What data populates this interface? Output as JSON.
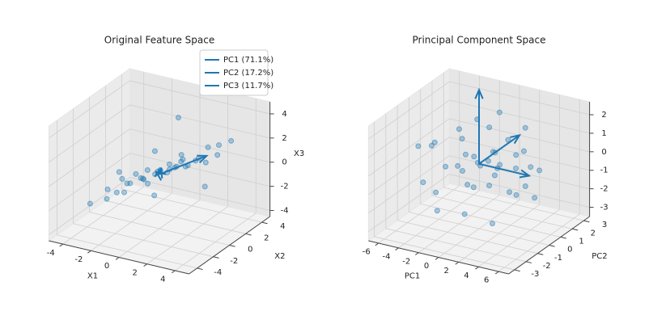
{
  "chart_data": [
    {
      "type": "scatter3d",
      "title": "Original Feature Space",
      "xlabel": "X1",
      "ylabel": "X2",
      "zlabel": "X3",
      "color": "#1f77b4",
      "legend": "upper right",
      "xlim": [
        -5,
        5
      ],
      "ylim": [
        -5,
        5
      ],
      "zlim": [
        -4.5,
        5
      ],
      "xticks": [
        -4,
        -2,
        0,
        2,
        4
      ],
      "yticks": [
        -4,
        -2,
        0,
        2,
        4
      ],
      "zticks": [
        -4,
        -2,
        0,
        2,
        4
      ],
      "x": [
        -3.5,
        -3,
        -2.6,
        -2.2,
        -2,
        -1.8,
        -1.5,
        -1.3,
        -1.1,
        -1,
        -0.8,
        -0.6,
        -0.5,
        -0.3,
        -0.2,
        0,
        0.1,
        0.3,
        0.4,
        0.6,
        0.7,
        0.9,
        1,
        1.2,
        1.4,
        1.5,
        1.7,
        2,
        2.2,
        2.5,
        2.8,
        3.1,
        3.5,
        -2.8,
        -0.9,
        0.5,
        1.8,
        2.9,
        -1.6,
        0.2
      ],
      "y": [
        -2.5,
        -1.2,
        -2,
        -0.8,
        -1.8,
        -0.5,
        -1.4,
        0.2,
        -1,
        -0.2,
        -0.9,
        0.5,
        -0.6,
        0.3,
        -1.1,
        0.1,
        0.8,
        -0.4,
        1.2,
        0.2,
        0.9,
        -0.3,
        1.5,
        0.6,
        1.1,
        0.3,
        1.9,
        1,
        2.2,
        1.4,
        2.5,
        1.8,
        2.8,
        0.5,
        1,
        -1.5,
        -0.4,
        0.6,
        -2.2,
        2
      ],
      "z": [
        -2.2,
        -1.5,
        -1.8,
        -0.6,
        -1.2,
        -1,
        -0.5,
        -0.8,
        0.2,
        -0.6,
        -0.1,
        -0.4,
        0.5,
        0,
        -0.3,
        0.3,
        -0.2,
        0.6,
        0.1,
        0.9,
        0.4,
        0.8,
        0.2,
        1.1,
        0.6,
        1.5,
        0.9,
        1.2,
        1.8,
        1,
        2,
        1.6,
        2.4,
        -2.5,
        1.2,
        -0.9,
        2.3,
        -0.5,
        0.8,
        3.8
      ],
      "arrows": [
        {
          "name": "PC1 (71.1%)",
          "color": "#1f77b4",
          "vector": [
            2.5,
            1.5,
            1.5
          ]
        },
        {
          "name": "PC2 (17.2%)",
          "color": "#1f77b4",
          "vector": [
            -0.8,
            1,
            -0.5
          ]
        },
        {
          "name": "PC3 (11.7%)",
          "color": "#1f77b4",
          "vector": [
            0.4,
            -0.5,
            0.8
          ]
        }
      ]
    },
    {
      "type": "scatter3d",
      "title": "Principal Component Space",
      "xlabel": "PC1",
      "ylabel": "PC2",
      "color": "#1f77b4",
      "xlim": [
        -7,
        7
      ],
      "ylim": [
        -3.5,
        3.5
      ],
      "zlim": [
        -3.5,
        2.7
      ],
      "xticks": [
        -6,
        -4,
        -2,
        0,
        2,
        4,
        6
      ],
      "yticks": [
        -3,
        -2,
        -1,
        0,
        1,
        2,
        3
      ],
      "zticks": [
        -3,
        -2,
        -1,
        0,
        1,
        2
      ],
      "x": [
        -5,
        -4.2,
        -3.6,
        -3,
        -2.5,
        -2.1,
        -1.8,
        -1.4,
        -1,
        -0.7,
        -0.4,
        -0.1,
        0.2,
        0.5,
        0.8,
        1.1,
        1.4,
        1.8,
        2.2,
        2.6,
        3,
        3.5,
        4,
        4.6,
        5.2,
        -3.3,
        -1.2,
        0.6,
        2.4,
        3.8,
        -2.2,
        1.6,
        -0.5,
        0.9,
        -4.5,
        5.8,
        0,
        1,
        -1.6,
        2.9
      ],
      "y": [
        0.5,
        -1.2,
        1.4,
        -0.3,
        2,
        -1.8,
        0.4,
        1.1,
        -0.6,
        2.4,
        -1.5,
        0.2,
        1.6,
        -0.9,
        0.7,
        -2.2,
        1.3,
        -0.2,
        2.1,
        -1.1,
        0.6,
        -0.4,
        1,
        -0.8,
        0.3,
        -2.4,
        -2.7,
        2.7,
        1.8,
        -1.7,
        0.9,
        -0.5,
        -1,
        0.1,
        -0.2,
        0.2,
        0.8,
        -1.3,
        2.6,
        1.5
      ],
      "z": [
        0.3,
        -1,
        0.8,
        -0.4,
        1.2,
        -2,
        0.1,
        -0.6,
        1.5,
        -1.2,
        0.5,
        -0.2,
        2.1,
        -0.8,
        0.4,
        -1.6,
        0.9,
        -0.3,
        1.3,
        -2.4,
        0.6,
        -0.9,
        -0.1,
        0.7,
        -1.3,
        1.6,
        -0.5,
        -2.8,
        0.2,
        1,
        -1.8,
        2.4,
        0,
        -1.1,
        0.5,
        0.3,
        -0.2,
        1.1,
        -0.7,
        -1.5
      ],
      "arrows": [
        {
          "color": "#1f77b4",
          "vector": [
            5,
            0,
            0
          ]
        },
        {
          "color": "#1f77b4",
          "vector": [
            0,
            3.5,
            0
          ]
        },
        {
          "color": "#1f77b4",
          "vector": [
            0,
            0,
            4
          ]
        }
      ]
    }
  ]
}
